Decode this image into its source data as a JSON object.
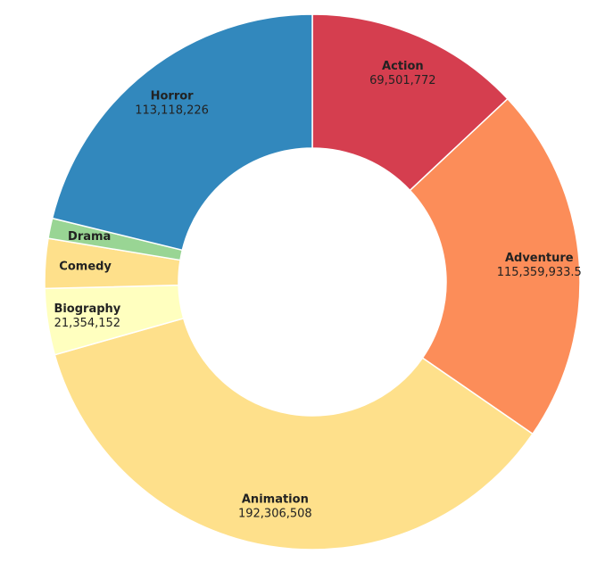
{
  "chart_data": {
    "type": "pie",
    "donut": true,
    "title": "",
    "start_angle_deg": 0,
    "direction": "clockwise",
    "slices": [
      {
        "label": "Action",
        "value": 69501772,
        "value_label": "69,501,772",
        "color": "#d53e4f"
      },
      {
        "label": "Adventure",
        "value": 115359933.5,
        "value_label": "115,359,933.5",
        "color": "#fc8d59"
      },
      {
        "label": "Animation",
        "value": 192306508,
        "value_label": "192,306,508",
        "color": "#fee08b"
      },
      {
        "label": "Biography",
        "value": 21354152,
        "value_label": "21,354,152",
        "color": "#ffffbf"
      },
      {
        "label": "Comedy",
        "value": 16000000,
        "value_label": "",
        "color": "#fee08b"
      },
      {
        "label": "Drama",
        "value": 6500000,
        "value_label": "",
        "color": "#99d594"
      },
      {
        "label": "Horror",
        "value": 113118226,
        "value_label": "113,118,226",
        "color": "#3288bd"
      }
    ]
  }
}
